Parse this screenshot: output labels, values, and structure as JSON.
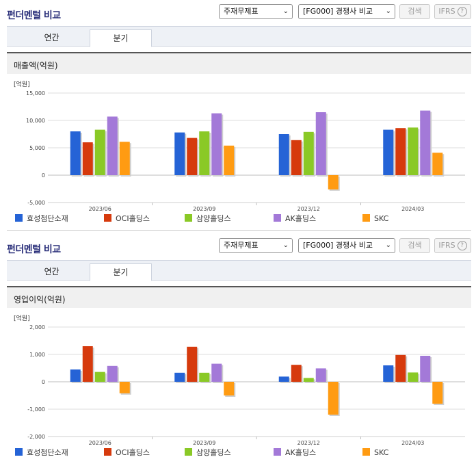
{
  "panels": [
    {
      "title": "펀더멘털 비교",
      "select1": "주재무제표",
      "select2": "[FG000] 경쟁사 비교",
      "search_label": "검색",
      "ifrs_label": "IFRS",
      "help_glyph": "?",
      "tabs": [
        "연간",
        "분기"
      ],
      "active_tab": "분기",
      "section_title": "매출액(억원)",
      "unit_label": "[억원]",
      "chart_data": {
        "type": "bar",
        "title": "매출액(억원)",
        "ylabel": "[억원]",
        "ylim": [
          -5000,
          15000
        ],
        "yticks": [
          "15,000",
          "10,000",
          "5,000",
          "0",
          "-5,000"
        ],
        "ytick_values": [
          15000,
          10000,
          5000,
          0,
          -5000
        ],
        "grid": true,
        "legend": "bottom",
        "categories": [
          "2023/06",
          "2023/09",
          "2023/12",
          "2024/03"
        ],
        "series": [
          {
            "name": "효성첨단소재",
            "color": "#2563d6",
            "values": [
              8000,
              7800,
              7500,
              8300
            ]
          },
          {
            "name": "OCI홀딩스",
            "color": "#d63a0d",
            "values": [
              6000,
              6800,
              6400,
              8600
            ]
          },
          {
            "name": "삼양홀딩스",
            "color": "#8ac926",
            "values": [
              8300,
              8000,
              7900,
              8700
            ]
          },
          {
            "name": "AK홀딩스",
            "color": "#a379d8",
            "values": [
              10700,
              11300,
              11500,
              11800
            ]
          },
          {
            "name": "SKC",
            "color": "#ff9b12",
            "values": [
              6100,
              5400,
              -2600,
              4100
            ]
          }
        ]
      }
    },
    {
      "title": "펀더멘털 비교",
      "select1": "주재무제표",
      "select2": "[FG000] 경쟁사 비교",
      "search_label": "검색",
      "ifrs_label": "IFRS",
      "help_glyph": "?",
      "tabs": [
        "연간",
        "분기"
      ],
      "active_tab": "분기",
      "section_title": "영업이익(억원)",
      "unit_label": "[억원]",
      "chart_data": {
        "type": "bar",
        "title": "영업이익(억원)",
        "ylabel": "[억원]",
        "ylim": [
          -2000,
          2000
        ],
        "yticks": [
          "2,000",
          "1,000",
          "0",
          "-1,000",
          "-2,000"
        ],
        "ytick_values": [
          2000,
          1000,
          0,
          -1000,
          -2000
        ],
        "grid": true,
        "legend": "bottom",
        "categories": [
          "2023/06",
          "2023/09",
          "2023/12",
          "2024/03"
        ],
        "series": [
          {
            "name": "효성첨단소재",
            "color": "#2563d6",
            "values": [
              450,
              330,
              190,
              600
            ]
          },
          {
            "name": "OCI홀딩스",
            "color": "#d63a0d",
            "values": [
              1300,
              1280,
              620,
              980
            ]
          },
          {
            "name": "삼양홀딩스",
            "color": "#8ac926",
            "values": [
              360,
              330,
              140,
              340
            ]
          },
          {
            "name": "AK홀딩스",
            "color": "#a379d8",
            "values": [
              580,
              660,
              490,
              950
            ]
          },
          {
            "name": "SKC",
            "color": "#ff9b12",
            "values": [
              -420,
              -500,
              -1200,
              -800
            ]
          }
        ]
      }
    }
  ]
}
